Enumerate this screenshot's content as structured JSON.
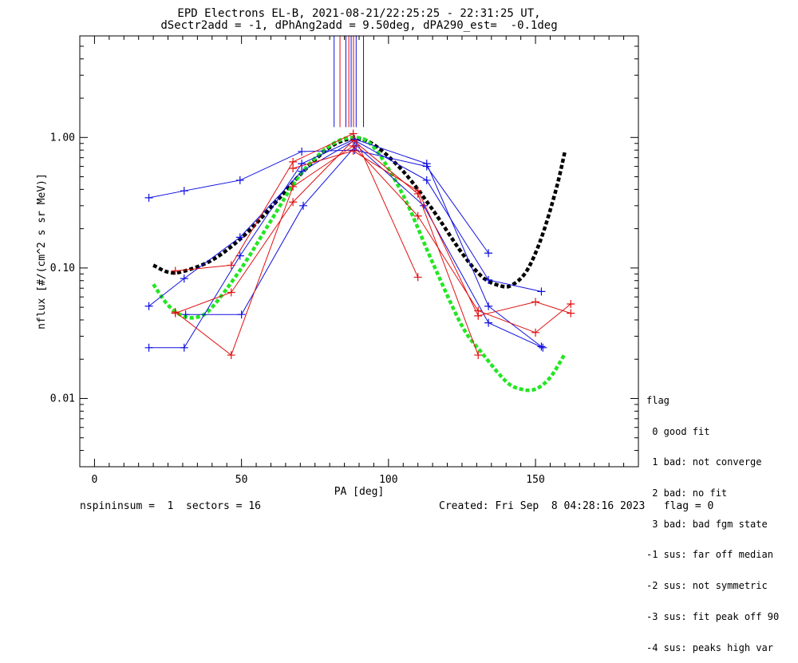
{
  "chart_data": {
    "type": "line",
    "title_line1": "EPD Electrons EL-B, 2021-08-21/22:25:25 - 22:31:25 UT,",
    "title_line2": "dSectr2add = -1, dPhAng2add = 9.50deg, dPA290_est=  -0.1deg",
    "xlabel": "PA [deg]",
    "ylabel": "nflux [#/(cm^2 s sr MeV)]",
    "xlim": [
      -5,
      185
    ],
    "ylim": [
      0.003,
      6.0
    ],
    "yscale": "log",
    "grid": false,
    "x_ticks": [
      0,
      50,
      100,
      150
    ],
    "x_tick_labels": [
      "0",
      "50",
      "100",
      "150"
    ],
    "y_ticks": [
      0.01,
      0.1,
      1.0
    ],
    "y_tick_labels": [
      "0.01",
      "0.10",
      "1.00"
    ],
    "colors": {
      "blue": "#1010e0",
      "red": "#e01010",
      "black_fit": "#000000",
      "green_fit": "#22e622"
    },
    "vertical_markers": {
      "ymin": 1.2,
      "ymax": 6.0,
      "lines": [
        {
          "x": 81.5,
          "color": "#1010e0"
        },
        {
          "x": 83.5,
          "color": "#e01010"
        },
        {
          "x": 85.5,
          "color": "#1010e0"
        },
        {
          "x": 86.5,
          "color": "#e01010"
        },
        {
          "x": 87.3,
          "color": "#1010e0"
        },
        {
          "x": 88.1,
          "color": "#e01010"
        },
        {
          "x": 89.0,
          "color": "#1010e0"
        },
        {
          "x": 91.5,
          "color": "#1010e0"
        }
      ]
    },
    "series": [
      {
        "color": "#1010e0",
        "x": [
          18.5,
          30.5,
          49.5,
          70.5,
          88.5,
          113.0,
          134.0
        ],
        "y": [
          0.345,
          0.39,
          0.47,
          0.78,
          0.8,
          0.6,
          0.13
        ]
      },
      {
        "color": "#1010e0",
        "x": [
          18.5,
          30.5,
          49.5,
          70.5,
          88.5,
          113.0,
          134.0,
          152.0
        ],
        "y": [
          0.051,
          0.083,
          0.172,
          0.55,
          0.95,
          0.47,
          0.081,
          0.066
        ]
      },
      {
        "color": "#1010e0",
        "x": [
          18.5,
          30.5,
          49.5,
          70.5,
          88.5,
          113.0,
          134.0,
          152.0
        ],
        "y": [
          0.0245,
          0.0245,
          0.124,
          0.63,
          0.97,
          0.63,
          0.051,
          0.025
        ]
      },
      {
        "color": "#1010e0",
        "x": [
          31.0,
          50.0,
          71.0,
          89.0,
          112.0,
          134.0,
          152.5
        ],
        "y": [
          0.044,
          0.044,
          0.3,
          0.87,
          0.3,
          0.038,
          0.0245
        ]
      },
      {
        "color": "#e01010",
        "x": [
          27.5,
          46.5,
          67.5,
          88.0,
          110.0
        ],
        "y": [
          0.095,
          0.105,
          0.65,
          1.07,
          0.085
        ]
      },
      {
        "color": "#e01010",
        "x": [
          27.5,
          46.5,
          67.5,
          88.0,
          110.0,
          130.5
        ],
        "y": [
          0.045,
          0.065,
          0.32,
          0.95,
          0.37,
          0.0215
        ]
      },
      {
        "color": "#e01010",
        "x": [
          27.5,
          46.5,
          67.5,
          88.0,
          110.0,
          130.5,
          150.0,
          162.0
        ],
        "y": [
          0.046,
          0.0215,
          0.42,
          0.86,
          0.25,
          0.047,
          0.032,
          0.053
        ]
      },
      {
        "color": "#e01010",
        "x": [
          67.5,
          88.0,
          110.0,
          130.5,
          150.0,
          162.0
        ],
        "y": [
          0.58,
          0.79,
          0.39,
          0.043,
          0.055,
          0.045
        ]
      }
    ],
    "fits": [
      {
        "color": "#000000",
        "x": [
          20,
          25,
          30,
          40,
          50,
          60,
          70,
          80,
          88,
          95,
          105,
          115,
          125,
          132,
          138,
          142,
          147,
          152,
          157,
          160
        ],
        "y": [
          0.105,
          0.093,
          0.094,
          0.115,
          0.17,
          0.29,
          0.52,
          0.84,
          0.98,
          0.88,
          0.55,
          0.28,
          0.13,
          0.085,
          0.073,
          0.074,
          0.095,
          0.17,
          0.4,
          0.78
        ]
      },
      {
        "color": "#22e622",
        "x": [
          20,
          25,
          30,
          35,
          40,
          50,
          60,
          70,
          80,
          88,
          95,
          105,
          115,
          125,
          132,
          140,
          145,
          150,
          155,
          160
        ],
        "y": [
          0.075,
          0.052,
          0.043,
          0.042,
          0.05,
          0.1,
          0.23,
          0.52,
          0.86,
          1.0,
          0.84,
          0.36,
          0.11,
          0.036,
          0.022,
          0.0135,
          0.0118,
          0.0118,
          0.0145,
          0.022
        ]
      }
    ]
  },
  "footer": {
    "left": "nspininsum =  1  sectors = 16",
    "right": "Created: Fri Sep  8 04:28:16 2023   flag = 0"
  },
  "legend": {
    "title": "flag",
    "items": [
      " 0 good fit",
      " 1 bad: not converge",
      " 2 bad: no fit",
      " 3 bad: bad fgm state",
      "-1 sus: far off median",
      "-2 sus: not symmetric",
      "-3 sus: fit peak off 90",
      "-4 sus: peaks high var"
    ]
  }
}
